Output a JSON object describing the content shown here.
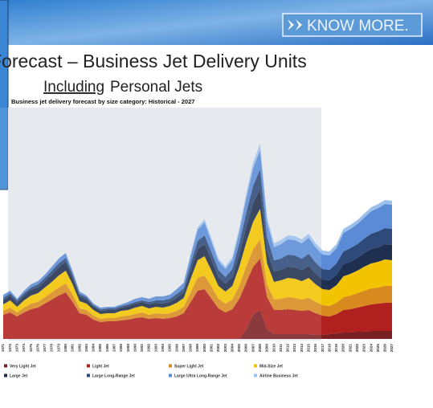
{
  "header": {
    "button": "KNOW MORE.",
    "title": "Forecast – Business Jet Delivery Units",
    "subtitle_underlined": "Including",
    "subtitle_rest": "Personal Jets"
  },
  "chart_data": {
    "type": "stacked_area",
    "title": "Business jet delivery forecast by size category: Historical - 2027",
    "categories": [
      "1971",
      "1972",
      "1973",
      "1974",
      "1975",
      "1976",
      "1977",
      "1978",
      "1979",
      "1980",
      "1981",
      "1982",
      "1983",
      "1984",
      "1985",
      "1986",
      "1987",
      "1988",
      "1989",
      "1990",
      "1991",
      "1992",
      "1993",
      "1994",
      "1995",
      "1996",
      "1997",
      "1998",
      "1999",
      "2000",
      "2001",
      "2002",
      "2003",
      "2004",
      "2005",
      "2006",
      "2007",
      "2008",
      "2009",
      "2010",
      "2011",
      "2012",
      "2013",
      "2014",
      "2015",
      "2016",
      "2017",
      "2018",
      "2019",
      "2020",
      "2021",
      "2022",
      "2023",
      "2024",
      "2025",
      "2026",
      "2027"
    ],
    "ylim": [
      0,
      1350
    ],
    "legend": "bottom",
    "series": [
      {
        "name": "Very Light Jet",
        "color": "#7a1f24",
        "values": [
          0,
          0,
          0,
          0,
          0,
          0,
          0,
          0,
          0,
          0,
          0,
          0,
          0,
          0,
          0,
          0,
          0,
          0,
          0,
          0,
          0,
          0,
          0,
          0,
          0,
          0,
          0,
          0,
          0,
          0,
          0,
          0,
          0,
          0,
          0,
          60,
          150,
          180,
          60,
          30,
          30,
          30,
          30,
          30,
          30,
          25,
          25,
          30,
          35,
          40,
          40,
          45,
          45,
          50,
          50,
          50,
          50
        ]
      },
      {
        "name": "Light Jet",
        "color": "#b0201f",
        "values": [
          150,
          165,
          140,
          165,
          185,
          195,
          220,
          245,
          270,
          290,
          230,
          160,
          150,
          120,
          105,
          110,
          110,
          115,
          120,
          130,
          135,
          125,
          130,
          125,
          130,
          140,
          160,
          230,
          300,
          310,
          250,
          190,
          165,
          185,
          250,
          290,
          300,
          320,
          200,
          150,
          150,
          155,
          150,
          145,
          150,
          135,
          120,
          110,
          120,
          140,
          145,
          150,
          160,
          165,
          170,
          175,
          175
        ]
      },
      {
        "name": "Super Light Jet",
        "color": "#d98a1f",
        "values": [
          25,
          30,
          25,
          30,
          35,
          35,
          40,
          45,
          50,
          55,
          45,
          30,
          30,
          25,
          20,
          20,
          20,
          25,
          25,
          25,
          30,
          25,
          30,
          30,
          30,
          35,
          40,
          60,
          80,
          85,
          75,
          60,
          55,
          60,
          80,
          100,
          110,
          120,
          80,
          65,
          70,
          75,
          75,
          70,
          75,
          70,
          65,
          65,
          70,
          80,
          85,
          90,
          95,
          100,
          100,
          105,
          105
        ]
      },
      {
        "name": "Mid-Size Jet",
        "color": "#f2c300",
        "values": [
          40,
          45,
          35,
          45,
          50,
          55,
          60,
          65,
          75,
          80,
          65,
          45,
          40,
          35,
          30,
          30,
          30,
          35,
          35,
          40,
          40,
          40,
          40,
          40,
          45,
          50,
          55,
          85,
          110,
          120,
          100,
          80,
          75,
          85,
          120,
          150,
          170,
          190,
          130,
          110,
          115,
          120,
          120,
          115,
          125,
          110,
          100,
          100,
          110,
          130,
          135,
          140,
          150,
          155,
          160,
          165,
          160
        ]
      },
      {
        "name": "Large Jet",
        "color": "#1f2f4f",
        "values": [
          25,
          30,
          25,
          30,
          35,
          35,
          40,
          45,
          50,
          55,
          40,
          30,
          25,
          20,
          20,
          20,
          20,
          20,
          25,
          25,
          25,
          25,
          25,
          25,
          25,
          30,
          35,
          55,
          70,
          75,
          65,
          55,
          50,
          55,
          75,
          95,
          115,
          125,
          80,
          65,
          65,
          70,
          70,
          70,
          75,
          65,
          60,
          60,
          65,
          75,
          75,
          80,
          85,
          90,
          90,
          95,
          95
        ]
      },
      {
        "name": "Large Long-Range Jet",
        "color": "#2e4a7a",
        "values": [
          15,
          15,
          15,
          15,
          15,
          20,
          20,
          25,
          25,
          25,
          20,
          15,
          15,
          10,
          10,
          10,
          10,
          10,
          10,
          10,
          10,
          15,
          15,
          20,
          20,
          25,
          25,
          40,
          50,
          55,
          50,
          45,
          40,
          50,
          70,
          90,
          110,
          120,
          85,
          70,
          70,
          75,
          75,
          70,
          75,
          70,
          65,
          65,
          70,
          80,
          85,
          85,
          90,
          95,
          100,
          100,
          100
        ]
      },
      {
        "name": "Large Ultra Long-Range Jet",
        "color": "#5b8bd6",
        "values": [
          20,
          15,
          10,
          15,
          20,
          20,
          20,
          25,
          30,
          30,
          20,
          15,
          10,
          10,
          10,
          10,
          10,
          10,
          15,
          20,
          20,
          20,
          25,
          25,
          25,
          30,
          35,
          50,
          70,
          80,
          65,
          55,
          50,
          55,
          70,
          90,
          110,
          120,
          95,
          80,
          90,
          95,
          95,
          95,
          100,
          95,
          90,
          90,
          95,
          115,
          120,
          125,
          130,
          140,
          145,
          150,
          150
        ]
      },
      {
        "name": "Airline Business Jet",
        "color": "#9cc0ec",
        "values": [
          0,
          0,
          0,
          0,
          0,
          0,
          0,
          0,
          0,
          0,
          0,
          0,
          0,
          0,
          0,
          0,
          0,
          0,
          0,
          0,
          0,
          0,
          0,
          0,
          0,
          0,
          0,
          10,
          15,
          20,
          20,
          15,
          15,
          20,
          25,
          30,
          35,
          40,
          30,
          25,
          25,
          25,
          25,
          25,
          25,
          25,
          25,
          25,
          25,
          25,
          25,
          25,
          25,
          25,
          25,
          25,
          25
        ]
      }
    ]
  }
}
